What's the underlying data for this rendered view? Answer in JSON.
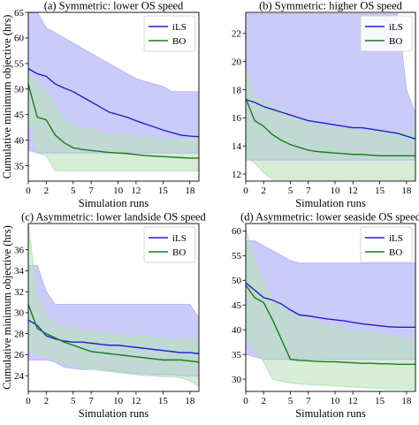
{
  "chart_data": [
    {
      "type": "line",
      "title": "(a) Symmetric: lower OS speed",
      "xlabel": "Simulation runs",
      "ylabel": "Cumulative minimum objective (hrs)",
      "x": [
        0,
        1,
        2,
        3,
        4,
        5,
        6,
        7,
        8,
        9,
        10,
        11,
        12,
        13,
        14,
        15,
        16,
        17,
        18,
        19
      ],
      "xticks": [
        0,
        2,
        5,
        7,
        10,
        12,
        15,
        18
      ],
      "yticks": [
        35,
        40,
        45,
        50,
        55,
        60,
        65
      ],
      "xlim": [
        0,
        19
      ],
      "ylim": [
        32,
        65
      ],
      "grid": false,
      "legend_position": "top-right",
      "series": [
        {
          "name": "iLS",
          "color": "#1f1fd6",
          "band_color": "#b9b9f7",
          "values": [
            54,
            53,
            52.5,
            51,
            50.2,
            49.5,
            48.5,
            47.5,
            46.5,
            45.5,
            45,
            44.5,
            43.8,
            43.2,
            42.6,
            42,
            41.5,
            41,
            40.8,
            40.7
          ],
          "lower": [
            38,
            37.5,
            37.5,
            37.5,
            37.5,
            37.5,
            37.5,
            37.5,
            37.5,
            37.5,
            37.5,
            37.5,
            37.5,
            37.5,
            37.5,
            37.5,
            37.5,
            37.5,
            37.5,
            37.5
          ],
          "upper": [
            65,
            65,
            62,
            61,
            60,
            59,
            58,
            57,
            56,
            55,
            54,
            53,
            52,
            51.5,
            51,
            50.5,
            49.5,
            49.5,
            49.5,
            49.5
          ]
        },
        {
          "name": "BO",
          "color": "#1a7a1a",
          "band_color": "#b9e3b9",
          "values": [
            51,
            44.5,
            44,
            41,
            39.5,
            38.5,
            38.2,
            38,
            37.8,
            37.6,
            37.5,
            37.4,
            37.2,
            37,
            36.9,
            36.8,
            36.7,
            36.6,
            36.5,
            36.5
          ],
          "lower": [
            46,
            37.5,
            37,
            34,
            34,
            34,
            34,
            34,
            34,
            34,
            34,
            34,
            34,
            34,
            34,
            34,
            34,
            34,
            34,
            34
          ],
          "upper": [
            53,
            51,
            49.5,
            47,
            44,
            43,
            42.5,
            42,
            41.5,
            41,
            41,
            41,
            40.5,
            40.5,
            40.5,
            40,
            40,
            40,
            40,
            40
          ]
        }
      ]
    },
    {
      "type": "line",
      "title": "(b) Symmetric: higher OS speed",
      "xlabel": "Simulation runs",
      "ylabel": "",
      "x": [
        0,
        1,
        2,
        3,
        4,
        5,
        6,
        7,
        8,
        9,
        10,
        11,
        12,
        13,
        14,
        15,
        16,
        17,
        18,
        19
      ],
      "xticks": [
        0,
        2,
        5,
        7,
        10,
        12,
        15,
        18
      ],
      "yticks": [
        12,
        14,
        16,
        18,
        20,
        22
      ],
      "xlim": [
        0,
        19
      ],
      "ylim": [
        11.5,
        23.5
      ],
      "grid": false,
      "legend_position": "top-right",
      "series": [
        {
          "name": "iLS",
          "color": "#1f1fd6",
          "band_color": "#b9b9f7",
          "values": [
            17.3,
            17.1,
            16.8,
            16.6,
            16.4,
            16.2,
            16,
            15.8,
            15.7,
            15.6,
            15.5,
            15.4,
            15.3,
            15.3,
            15.2,
            15.1,
            15,
            14.9,
            14.7,
            14.5
          ],
          "lower": [
            13,
            13,
            13,
            13,
            13,
            13,
            13,
            13,
            13,
            13,
            13,
            13,
            13,
            13,
            13,
            13,
            13,
            13,
            13,
            13
          ],
          "upper": [
            23.4,
            23.4,
            23.4,
            23.4,
            23.4,
            23.4,
            23.4,
            23.4,
            23.4,
            23.4,
            23.4,
            23.4,
            23.4,
            23.4,
            23.4,
            23.4,
            23.4,
            23.4,
            18,
            16.3
          ]
        },
        {
          "name": "BO",
          "color": "#1a7a1a",
          "band_color": "#b9e3b9",
          "values": [
            17.4,
            15.8,
            15.4,
            14.8,
            14.4,
            14.1,
            13.9,
            13.7,
            13.6,
            13.55,
            13.5,
            13.45,
            13.4,
            13.4,
            13.35,
            13.3,
            13.3,
            13.3,
            13.3,
            13.3
          ],
          "lower": [
            13.2,
            12.8,
            12.1,
            11.6,
            11.6,
            11.6,
            11.6,
            11.6,
            11.6,
            11.6,
            11.6,
            11.6,
            11.6,
            11.6,
            11.6,
            11.6,
            11.6,
            11.6,
            11.6,
            11.6
          ],
          "upper": [
            19.5,
            17.5,
            17.2,
            16.8,
            16.5,
            16.2,
            16,
            15.8,
            15.6,
            15.4,
            15.3,
            15.2,
            15.1,
            15,
            15,
            15,
            15,
            15,
            15,
            15
          ]
        }
      ]
    },
    {
      "type": "line",
      "title": "(c) Asymmetric: lower landside OS speed",
      "xlabel": "Simulation runs",
      "ylabel": "Cumulative minimum objective (hrs)",
      "x": [
        0,
        1,
        2,
        3,
        4,
        5,
        6,
        7,
        8,
        9,
        10,
        11,
        12,
        13,
        14,
        15,
        16,
        17,
        18,
        19
      ],
      "xticks": [
        0,
        2,
        5,
        7,
        10,
        12,
        15,
        18
      ],
      "yticks": [
        24,
        26,
        28,
        30,
        32,
        34,
        36
      ],
      "xlim": [
        0,
        19
      ],
      "ylim": [
        22.5,
        38.5
      ],
      "grid": false,
      "legend_position": "top-right",
      "series": [
        {
          "name": "iLS",
          "color": "#1f1fd6",
          "band_color": "#b9b9f7",
          "values": [
            29.3,
            28.8,
            27.8,
            27.5,
            27.3,
            27.2,
            27.2,
            27.1,
            27,
            26.9,
            26.9,
            26.8,
            26.7,
            26.6,
            26.5,
            26.4,
            26.3,
            26.2,
            26.2,
            26.1
          ],
          "lower": [
            25.5,
            25.5,
            25.5,
            25.3,
            24.8,
            24.7,
            24.6,
            24.6,
            24.5,
            24.5,
            24.4,
            24.3,
            24.2,
            24.2,
            24.1,
            24.1,
            24.1,
            24,
            24,
            24
          ],
          "upper": [
            34.5,
            34.5,
            32,
            30.8,
            30.8,
            30.8,
            30.8,
            30.8,
            30.8,
            30.8,
            30.8,
            30.8,
            30.8,
            30.8,
            30.8,
            30.8,
            30.8,
            30.8,
            30.8,
            29.5
          ]
        },
        {
          "name": "BO",
          "color": "#1a7a1a",
          "band_color": "#b9e3b9",
          "values": [
            30.8,
            28.5,
            28,
            27.6,
            27.2,
            26.9,
            26.6,
            26.3,
            26.2,
            26.1,
            26,
            25.9,
            25.8,
            25.7,
            25.6,
            25.5,
            25.5,
            25.5,
            25.4,
            25.3
          ],
          "lower": [
            26.5,
            26,
            25.8,
            25.5,
            25.2,
            25,
            24.8,
            24.6,
            24.5,
            24.4,
            24.3,
            24.2,
            24.1,
            24,
            24,
            23.9,
            23.9,
            23.8,
            23.5,
            23
          ],
          "upper": [
            38.5,
            31.5,
            29.8,
            29,
            28.7,
            28.5,
            28.3,
            28.1,
            28,
            28,
            27.9,
            27.8,
            27.8,
            27.7,
            27.6,
            27.6,
            27.5,
            27.5,
            27.5,
            27.5
          ]
        }
      ]
    },
    {
      "type": "line",
      "title": "(d) Asymmetric: lower seaside OS speed",
      "xlabel": "Simulation runs",
      "ylabel": "",
      "x": [
        0,
        1,
        2,
        3,
        4,
        5,
        6,
        7,
        8,
        9,
        10,
        11,
        12,
        13,
        14,
        15,
        16,
        17,
        18,
        19
      ],
      "xticks": [
        0,
        2,
        5,
        7,
        10,
        12,
        15,
        18
      ],
      "yticks": [
        30,
        35,
        40,
        45,
        50,
        55,
        60
      ],
      "xlim": [
        0,
        19
      ],
      "ylim": [
        27.5,
        61.5
      ],
      "grid": false,
      "legend_position": "top-right",
      "series": [
        {
          "name": "iLS",
          "color": "#1f1fd6",
          "band_color": "#b9b9f7",
          "values": [
            49.5,
            48,
            46.5,
            46,
            45.2,
            44,
            43,
            42.8,
            42.5,
            42.2,
            42,
            41.8,
            41.5,
            41.2,
            41,
            40.8,
            40.6,
            40.5,
            40.5,
            40.5
          ],
          "lower": [
            35,
            34.5,
            34,
            34,
            34,
            34,
            34,
            34,
            34,
            34,
            34,
            34,
            34,
            34,
            34,
            34,
            34,
            34,
            34,
            34
          ],
          "upper": [
            58,
            58,
            57,
            56,
            55,
            54,
            53.5,
            53.5,
            53.5,
            53.5,
            53.5,
            53.5,
            53.5,
            53.5,
            53.5,
            53.5,
            53.5,
            53.5,
            53.5,
            53.5
          ]
        },
        {
          "name": "BO",
          "color": "#1a7a1a",
          "band_color": "#b9e3b9",
          "values": [
            49,
            46.5,
            45.5,
            42,
            38,
            34,
            33.8,
            33.7,
            33.6,
            33.5,
            33.5,
            33.4,
            33.3,
            33.2,
            33.2,
            33.1,
            33.1,
            33,
            33,
            33
          ],
          "lower": [
            38.5,
            36,
            33.5,
            30,
            29.5,
            29.2,
            29,
            28.9,
            28.8,
            28.7,
            28.6,
            28.5,
            28.4,
            28.3,
            28.2,
            28.1,
            28,
            28,
            28,
            28
          ],
          "upper": [
            60.5,
            54,
            50,
            46,
            44.5,
            43,
            42.5,
            42,
            41.5,
            41,
            40.5,
            40,
            39.8,
            39.5,
            39.2,
            39,
            38.8,
            38.5,
            38.2,
            38
          ]
        }
      ]
    }
  ]
}
